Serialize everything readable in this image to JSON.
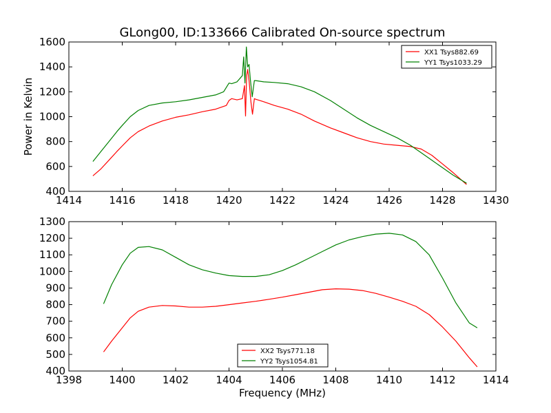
{
  "figure": {
    "title": "GLong00, ID:133666 Calibrated On-source spectrum"
  },
  "chart_data": [
    {
      "type": "line",
      "title": "GLong00, ID:133666 Calibrated On-source spectrum",
      "xlabel": "",
      "ylabel": "Power in Kelvin",
      "xlim": [
        1414,
        1430
      ],
      "ylim": [
        400,
        1600
      ],
      "xticks": [
        1414,
        1416,
        1418,
        1420,
        1422,
        1424,
        1426,
        1428,
        1430
      ],
      "yticks": [
        400,
        600,
        800,
        1000,
        1200,
        1400,
        1600
      ],
      "legend": "top-right",
      "grid": false,
      "series": [
        {
          "name": "XX1 Tsys882.69",
          "color": "#ff0000",
          "x": [
            1414.9,
            1415.2,
            1415.5,
            1415.8,
            1416.0,
            1416.3,
            1416.6,
            1417.0,
            1417.5,
            1418.0,
            1418.5,
            1419.0,
            1419.5,
            1419.9,
            1420.0,
            1420.1,
            1420.3,
            1420.5,
            1420.58,
            1420.62,
            1420.66,
            1420.7,
            1420.75,
            1420.82,
            1420.88,
            1420.95,
            1421.0,
            1421.3,
            1421.7,
            1422.2,
            1422.7,
            1423.2,
            1423.8,
            1424.3,
            1424.8,
            1425.3,
            1425.8,
            1426.3,
            1426.8,
            1427.2,
            1427.6,
            1428.0,
            1428.4,
            1428.9
          ],
          "y": [
            525,
            580,
            650,
            720,
            765,
            830,
            880,
            925,
            965,
            995,
            1015,
            1040,
            1060,
            1090,
            1130,
            1145,
            1135,
            1145,
            1250,
            1005,
            1330,
            1380,
            1290,
            1120,
            1020,
            1145,
            1140,
            1120,
            1090,
            1060,
            1020,
            965,
            910,
            870,
            830,
            800,
            780,
            770,
            760,
            740,
            690,
            620,
            550,
            455
          ]
        },
        {
          "name": "YY1 Tsys1033.29",
          "color": "#008000",
          "x": [
            1414.9,
            1415.2,
            1415.5,
            1415.8,
            1416.0,
            1416.3,
            1416.6,
            1417.0,
            1417.5,
            1418.0,
            1418.5,
            1419.0,
            1419.5,
            1419.8,
            1420.0,
            1420.1,
            1420.3,
            1420.5,
            1420.55,
            1420.6,
            1420.65,
            1420.7,
            1420.75,
            1420.8,
            1420.87,
            1420.95,
            1421.0,
            1421.3,
            1421.7,
            1422.2,
            1422.7,
            1423.2,
            1423.8,
            1424.3,
            1424.8,
            1425.3,
            1425.8,
            1426.3,
            1426.8,
            1427.2,
            1427.6,
            1428.0,
            1428.4,
            1428.9
          ],
          "y": [
            640,
            720,
            800,
            880,
            930,
            1000,
            1050,
            1090,
            1110,
            1120,
            1135,
            1155,
            1175,
            1200,
            1270,
            1265,
            1280,
            1330,
            1480,
            1270,
            1560,
            1400,
            1420,
            1300,
            1160,
            1290,
            1290,
            1280,
            1275,
            1265,
            1240,
            1200,
            1130,
            1060,
            990,
            930,
            880,
            830,
            770,
            710,
            650,
            590,
            530,
            465
          ]
        }
      ]
    },
    {
      "type": "line",
      "title": "",
      "xlabel": "Frequency (MHz)",
      "ylabel": "",
      "xlim": [
        1398,
        1414
      ],
      "ylim": [
        400,
        1300
      ],
      "xticks": [
        1398,
        1400,
        1402,
        1404,
        1406,
        1408,
        1410,
        1412,
        1414
      ],
      "yticks": [
        400,
        500,
        600,
        700,
        800,
        900,
        1000,
        1100,
        1200,
        1300
      ],
      "legend": "bottom-center",
      "grid": false,
      "series": [
        {
          "name": "XX2 Tsys771.18",
          "color": "#ff0000",
          "x": [
            1399.3,
            1399.6,
            1400.0,
            1400.3,
            1400.6,
            1401.0,
            1401.5,
            1402.0,
            1402.5,
            1403.0,
            1403.5,
            1404.0,
            1404.5,
            1405.0,
            1405.5,
            1406.0,
            1406.5,
            1407.0,
            1407.5,
            1408.0,
            1408.5,
            1409.0,
            1409.5,
            1410.0,
            1410.5,
            1411.0,
            1411.5,
            1412.0,
            1412.5,
            1413.0,
            1413.3
          ],
          "y": [
            515,
            580,
            660,
            720,
            760,
            785,
            795,
            792,
            785,
            785,
            790,
            800,
            810,
            820,
            832,
            845,
            860,
            875,
            890,
            895,
            893,
            885,
            868,
            845,
            820,
            790,
            740,
            665,
            580,
            480,
            425
          ]
        },
        {
          "name": "YY2 Tsys1054.81",
          "color": "#008000",
          "x": [
            1399.3,
            1399.6,
            1400.0,
            1400.3,
            1400.6,
            1401.0,
            1401.5,
            1402.0,
            1402.5,
            1403.0,
            1403.5,
            1404.0,
            1404.5,
            1405.0,
            1405.5,
            1406.0,
            1406.5,
            1407.0,
            1407.5,
            1408.0,
            1408.5,
            1409.0,
            1409.5,
            1410.0,
            1410.5,
            1411.0,
            1411.5,
            1412.0,
            1412.5,
            1413.0,
            1413.3
          ],
          "y": [
            805,
            920,
            1040,
            1110,
            1145,
            1150,
            1130,
            1085,
            1040,
            1010,
            990,
            975,
            970,
            970,
            980,
            1005,
            1040,
            1080,
            1120,
            1160,
            1190,
            1210,
            1225,
            1230,
            1220,
            1180,
            1100,
            960,
            810,
            690,
            660
          ]
        }
      ]
    }
  ]
}
